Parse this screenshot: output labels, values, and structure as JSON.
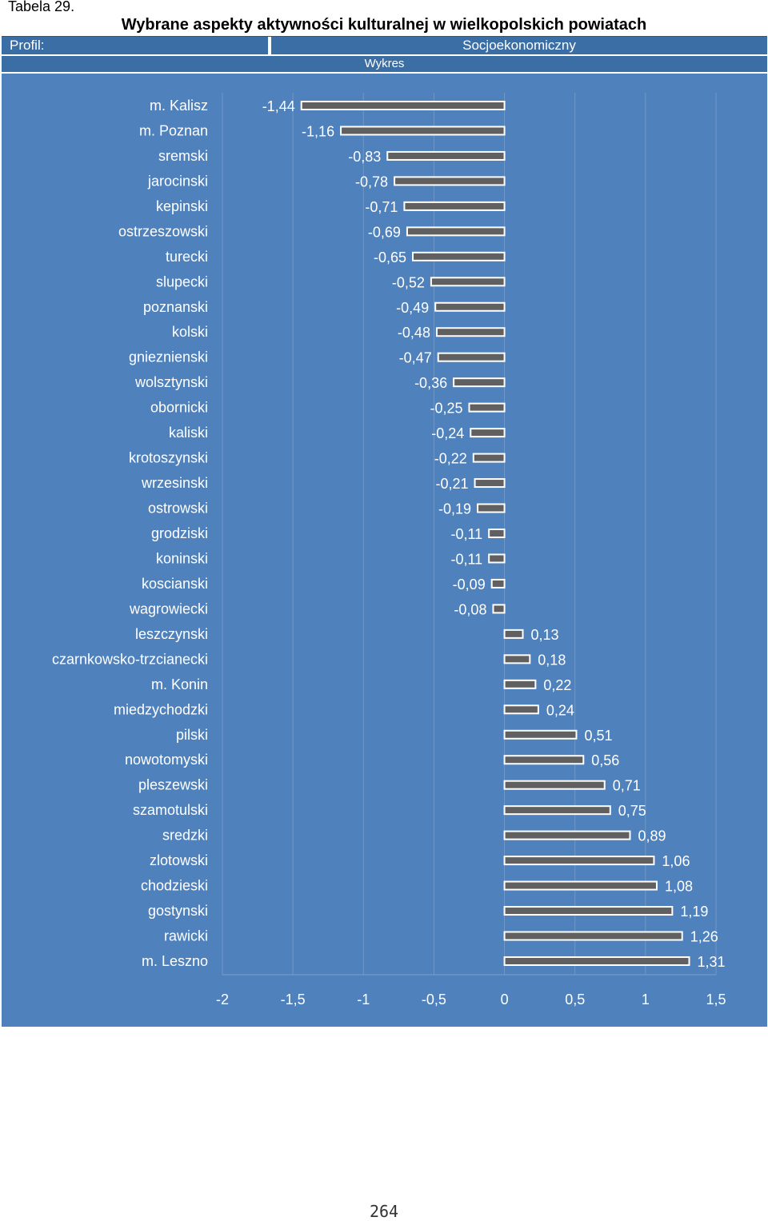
{
  "header": {
    "tabela": "Tabela 29.",
    "title": "Wybrane aspekty aktywności kulturalnej w wielkopolskich powiatach",
    "profil_label": "Profil:",
    "profil_value": "Socjoekonomiczny",
    "wykres_label": "Wykres"
  },
  "colors": {
    "header_bar": "#3b6ea5",
    "plot_background": "#4f81bd",
    "bar_fill": "#606060",
    "bar_outline": "#ffffff",
    "text": "#ffffff"
  },
  "chart_data": {
    "type": "bar",
    "orientation": "horizontal",
    "title": "",
    "xlabel": "",
    "ylabel": "",
    "xlim": [
      -2,
      1.5
    ],
    "xticks": [
      "-2",
      "-1,5",
      "-1",
      "-0,5",
      "0",
      "0,5",
      "1",
      "1,5"
    ],
    "grid": true,
    "legend": "none",
    "categories": [
      "m. Kalisz",
      "m. Poznan",
      "sremski",
      "jarocinski",
      "kepinski",
      "ostrzeszowski",
      "turecki",
      "slupecki",
      "poznanski",
      "kolski",
      "gnieznienski",
      "wolsztynski",
      "obornicki",
      "kaliski",
      "krotoszynski",
      "wrzesinski",
      "ostrowski",
      "grodziski",
      "koninski",
      "koscianski",
      "wagrowiecki",
      "leszczynski",
      "czarnkowsko-trzcianecki",
      "m. Konin",
      "miedzychodzki",
      "pilski",
      "nowotomyski",
      "pleszewski",
      "szamotulski",
      "sredzki",
      "zlotowski",
      "chodzieski",
      "gostynski",
      "rawicki",
      "m. Leszno"
    ],
    "values": [
      -1.44,
      -1.16,
      -0.83,
      -0.78,
      -0.71,
      -0.69,
      -0.65,
      -0.52,
      -0.49,
      -0.48,
      -0.47,
      -0.36,
      -0.25,
      -0.24,
      -0.22,
      -0.21,
      -0.19,
      -0.11,
      -0.11,
      -0.09,
      -0.08,
      0.13,
      0.18,
      0.22,
      0.24,
      0.51,
      0.56,
      0.71,
      0.75,
      0.89,
      1.06,
      1.08,
      1.19,
      1.26,
      1.31
    ],
    "data_labels": [
      "-1,44",
      "-1,16",
      "-0,83",
      "-0,78",
      "-0,71",
      "-0,69",
      "-0,65",
      "-0,52",
      "-0,49",
      "-0,48",
      "-0,47",
      "-0,36",
      "-0,25",
      "-0,24",
      "-0,22",
      "-0,21",
      "-0,19",
      "-0,11",
      "-0,11",
      "-0,09",
      "-0,08",
      "0,13",
      "0,18",
      "0,22",
      "0,24",
      "0,51",
      "0,56",
      "0,71",
      "0,75",
      "0,89",
      "1,06",
      "1,08",
      "1,19",
      "1,26",
      "1,31"
    ]
  },
  "footer": {
    "page_number": "264"
  }
}
